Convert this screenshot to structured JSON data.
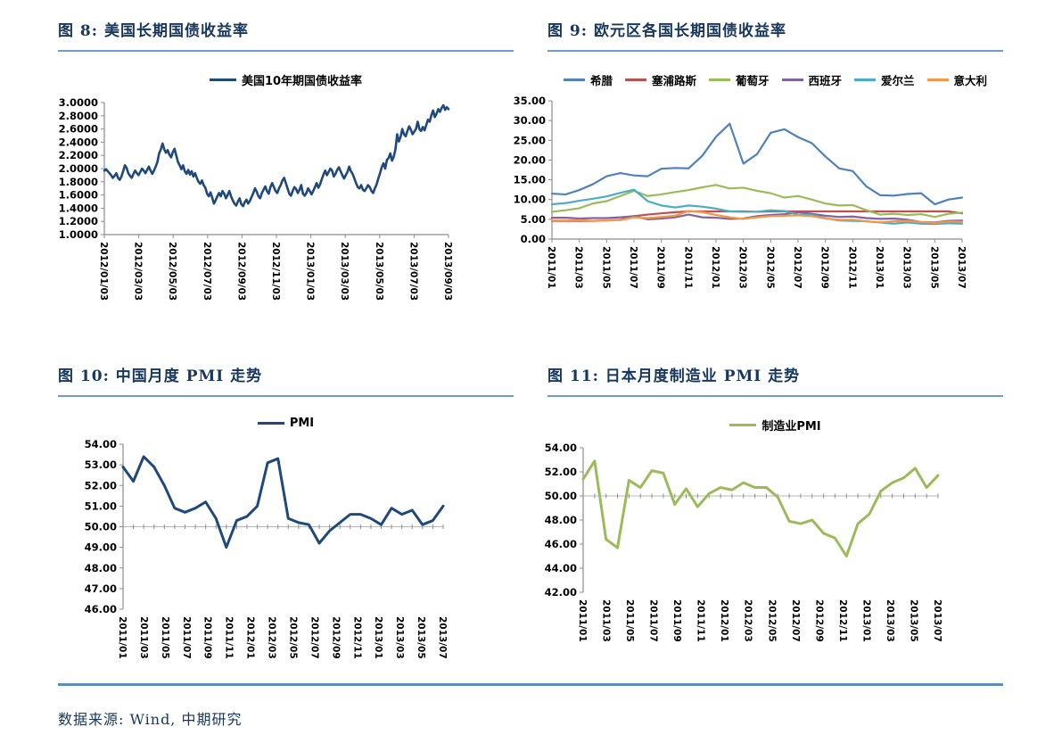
{
  "page": {
    "source_note": "数据来源: Wind, 中期研究"
  },
  "chart_data": [
    {
      "type": "line",
      "figure_title": "图 8: 美国长期国债收益率",
      "title": "美国10年期国债收益率",
      "ylim": [
        1.0,
        3.0
      ],
      "y_ticks": [
        "3.0000",
        "2.8000",
        "2.6000",
        "2.4000",
        "2.2000",
        "2.0000",
        "1.8000",
        "1.6000",
        "1.4000",
        "1.2000",
        "1.0000"
      ],
      "x_labels": [
        "2012/01/03",
        "2012/03/03",
        "2012/05/03",
        "2012/07/03",
        "2012/09/03",
        "2012/11/03",
        "2013/01/03",
        "2013/03/03",
        "2013/05/03",
        "2013/07/03",
        "2013/09/03"
      ],
      "bottom_axis": true,
      "cross_y": null,
      "line_width": 2.6,
      "series": [
        {
          "name": "美国10年期国债收益率",
          "color": "#1f497d",
          "values": [
            1.97,
            1.99,
            1.96,
            1.93,
            1.9,
            1.86,
            1.89,
            1.93,
            1.86,
            1.83,
            1.88,
            1.96,
            2.05,
            2.01,
            1.93,
            1.89,
            1.86,
            1.92,
            1.97,
            1.93,
            1.9,
            1.95,
            2.0,
            1.97,
            1.93,
            1.98,
            2.03,
            1.97,
            1.92,
            1.97,
            2.03,
            2.1,
            2.23,
            2.29,
            2.38,
            2.29,
            2.24,
            2.28,
            2.21,
            2.17,
            2.25,
            2.3,
            2.2,
            2.1,
            2.05,
            1.99,
            2.05,
            1.96,
            1.92,
            1.98,
            1.91,
            1.96,
            1.88,
            1.93,
            1.86,
            1.8,
            1.77,
            1.82,
            1.75,
            1.71,
            1.62,
            1.58,
            1.64,
            1.56,
            1.47,
            1.52,
            1.58,
            1.63,
            1.58,
            1.66,
            1.62,
            1.55,
            1.6,
            1.66,
            1.58,
            1.52,
            1.47,
            1.44,
            1.5,
            1.55,
            1.46,
            1.43,
            1.49,
            1.53,
            1.47,
            1.51,
            1.57,
            1.63,
            1.7,
            1.65,
            1.58,
            1.55,
            1.63,
            1.68,
            1.73,
            1.66,
            1.62,
            1.72,
            1.78,
            1.72,
            1.66,
            1.63,
            1.7,
            1.75,
            1.82,
            1.86,
            1.78,
            1.7,
            1.62,
            1.59,
            1.66,
            1.72,
            1.69,
            1.63,
            1.68,
            1.75,
            1.62,
            1.59,
            1.63,
            1.7,
            1.66,
            1.61,
            1.66,
            1.72,
            1.78,
            1.71,
            1.76,
            1.84,
            1.91,
            1.97,
            1.9,
            1.95,
            2.0,
            1.97,
            1.88,
            1.92,
            1.98,
            2.02,
            1.96,
            1.9,
            1.85,
            1.9,
            1.95,
            2.03,
            1.96,
            1.92,
            1.85,
            1.78,
            1.72,
            1.7,
            1.75,
            1.68,
            1.66,
            1.7,
            1.75,
            1.72,
            1.66,
            1.63,
            1.7,
            1.76,
            1.85,
            1.93,
            2.02,
            2.08,
            2.0,
            2.13,
            2.16,
            2.23,
            2.12,
            2.18,
            2.29,
            2.52,
            2.41,
            2.48,
            2.6,
            2.52,
            2.49,
            2.57,
            2.64,
            2.59,
            2.52,
            2.56,
            2.6,
            2.71,
            2.6,
            2.57,
            2.63,
            2.58,
            2.66,
            2.74,
            2.71,
            2.81,
            2.88,
            2.78,
            2.83,
            2.9,
            2.86,
            2.92,
            2.96,
            2.89,
            2.93,
            2.9
          ]
        }
      ]
    },
    {
      "type": "line",
      "figure_title": "图 9: 欧元区各国长期国债收益率",
      "title": "欧元区各国长期国债收益率",
      "ylim": [
        0,
        35
      ],
      "y_ticks": [
        "35.00",
        "30.00",
        "25.00",
        "20.00",
        "15.00",
        "10.00",
        "5.00",
        "0.00"
      ],
      "x_labels": [
        "2011/01",
        "2011/03",
        "2011/05",
        "2011/07",
        "2011/09",
        "2011/11",
        "2012/01",
        "2012/03",
        "2012/05",
        "2012/07",
        "2012/09",
        "2012/11",
        "2013/01",
        "2013/03",
        "2013/05",
        "2013/07"
      ],
      "bottom_axis": true,
      "cross_y": null,
      "line_width": 2.2,
      "series": [
        {
          "name": "希腊",
          "color": "#4f81bd",
          "values": [
            11.5,
            11.3,
            12.4,
            13.9,
            15.9,
            16.7,
            16.1,
            15.9,
            17.8,
            18.0,
            17.9,
            21.1,
            25.9,
            29.2,
            19.1,
            21.5,
            26.9,
            27.8,
            25.8,
            24.3,
            20.9,
            17.9,
            17.2,
            13.3,
            11.1,
            11.0,
            11.4,
            11.6,
            8.8,
            10.0,
            10.5
          ]
        },
        {
          "name": "塞浦路斯",
          "color": "#c0504d",
          "values": [
            4.6,
            4.6,
            4.6,
            4.6,
            4.7,
            4.9,
            5.8,
            6.2,
            6.5,
            6.8,
            7.0,
            7.0,
            7.0,
            7.0,
            7.0,
            6.9,
            7.0,
            7.0,
            7.0,
            7.0,
            7.0,
            7.0,
            7.0,
            7.0,
            7.0,
            7.0,
            7.0,
            7.0,
            7.0,
            7.0,
            6.5
          ]
        },
        {
          "name": "葡萄牙",
          "color": "#9bbb59",
          "values": [
            6.9,
            7.3,
            7.8,
            9.0,
            9.6,
            10.9,
            12.2,
            10.9,
            11.3,
            11.9,
            12.4,
            13.1,
            13.7,
            12.8,
            13.0,
            12.2,
            11.6,
            10.5,
            10.9,
            10.0,
            9.0,
            8.5,
            8.6,
            7.3,
            6.2,
            6.4,
            6.1,
            6.3,
            5.6,
            6.4,
            6.7
          ]
        },
        {
          "name": "西班牙",
          "color": "#8064a2",
          "values": [
            5.4,
            5.4,
            5.2,
            5.3,
            5.3,
            5.5,
            5.8,
            5.0,
            5.2,
            5.5,
            6.2,
            5.5,
            5.4,
            5.1,
            5.2,
            5.8,
            6.1,
            6.3,
            6.8,
            6.4,
            5.9,
            5.6,
            5.7,
            5.3,
            5.1,
            5.2,
            4.9,
            4.3,
            4.2,
            4.6,
            4.7
          ]
        },
        {
          "name": "爱尔兰",
          "color": "#4bacc6",
          "values": [
            8.8,
            9.1,
            9.7,
            10.2,
            10.8,
            11.7,
            12.5,
            9.6,
            8.5,
            8.0,
            8.5,
            8.2,
            7.7,
            7.0,
            6.9,
            6.9,
            7.3,
            7.1,
            6.2,
            6.1,
            5.3,
            4.7,
            4.6,
            4.5,
            4.2,
            3.9,
            4.2,
            3.9,
            3.8,
            4.0,
            3.9
          ]
        },
        {
          "name": "意大利",
          "color": "#f79646",
          "values": [
            4.7,
            4.7,
            4.8,
            4.6,
            4.7,
            4.8,
            5.5,
            5.3,
            5.6,
            5.9,
            7.1,
            6.8,
            6.1,
            5.5,
            5.1,
            5.5,
            5.8,
            5.9,
            6.0,
            5.8,
            5.2,
            4.9,
            4.9,
            4.5,
            4.2,
            4.5,
            4.6,
            4.3,
            4.1,
            4.4,
            4.4
          ]
        }
      ]
    },
    {
      "type": "line",
      "figure_title": "图 10: 中国月度 PMI 走势",
      "title": "PMI",
      "ylim": [
        46,
        54
      ],
      "y_ticks": [
        "54.00",
        "53.00",
        "52.00",
        "51.00",
        "50.00",
        "49.00",
        "48.00",
        "47.00",
        "46.00"
      ],
      "x_labels": [
        "2011/01",
        "2011/03",
        "2011/05",
        "2011/07",
        "2011/09",
        "2011/11",
        "2012/01",
        "2012/03",
        "2012/05",
        "2012/07",
        "2012/09",
        "2012/11",
        "2013/01",
        "2013/03",
        "2013/05",
        "2013/07"
      ],
      "bottom_axis": false,
      "cross_y": 50,
      "line_width": 3,
      "series": [
        {
          "name": "PMI",
          "color": "#1f497d",
          "values": [
            52.9,
            52.2,
            53.4,
            52.9,
            52.0,
            50.9,
            50.7,
            50.9,
            51.2,
            50.4,
            49.0,
            50.3,
            50.5,
            51.0,
            53.1,
            53.3,
            50.4,
            50.2,
            50.1,
            49.2,
            49.8,
            50.2,
            50.6,
            50.6,
            50.4,
            50.1,
            50.9,
            50.6,
            50.8,
            50.1,
            50.3,
            51.0
          ]
        }
      ]
    },
    {
      "type": "line",
      "figure_title": "图 11: 日本月度制造业 PMI 走势",
      "title": "制造业PMI",
      "ylim": [
        42,
        54
      ],
      "y_ticks": [
        "54.00",
        "52.00",
        "50.00",
        "48.00",
        "46.00",
        "44.00",
        "42.00"
      ],
      "x_labels": [
        "2011/01",
        "2011/03",
        "2011/05",
        "2011/07",
        "2011/09",
        "2011/11",
        "2012/01",
        "2012/03",
        "2012/05",
        "2012/07",
        "2012/09",
        "2012/11",
        "2013/01",
        "2013/03",
        "2013/05",
        "2013/07"
      ],
      "bottom_axis": false,
      "cross_y": 50,
      "line_width": 3,
      "series": [
        {
          "name": "制造业PMI",
          "color": "#9bbb59",
          "values": [
            51.4,
            52.9,
            46.4,
            45.7,
            51.3,
            50.7,
            52.1,
            51.9,
            49.3,
            50.6,
            49.1,
            50.2,
            50.7,
            50.5,
            51.1,
            50.7,
            50.7,
            49.9,
            47.9,
            47.7,
            48.0,
            46.9,
            46.5,
            45.0,
            47.7,
            48.5,
            50.4,
            51.1,
            51.5,
            52.3,
            50.7,
            51.7
          ]
        }
      ]
    }
  ]
}
